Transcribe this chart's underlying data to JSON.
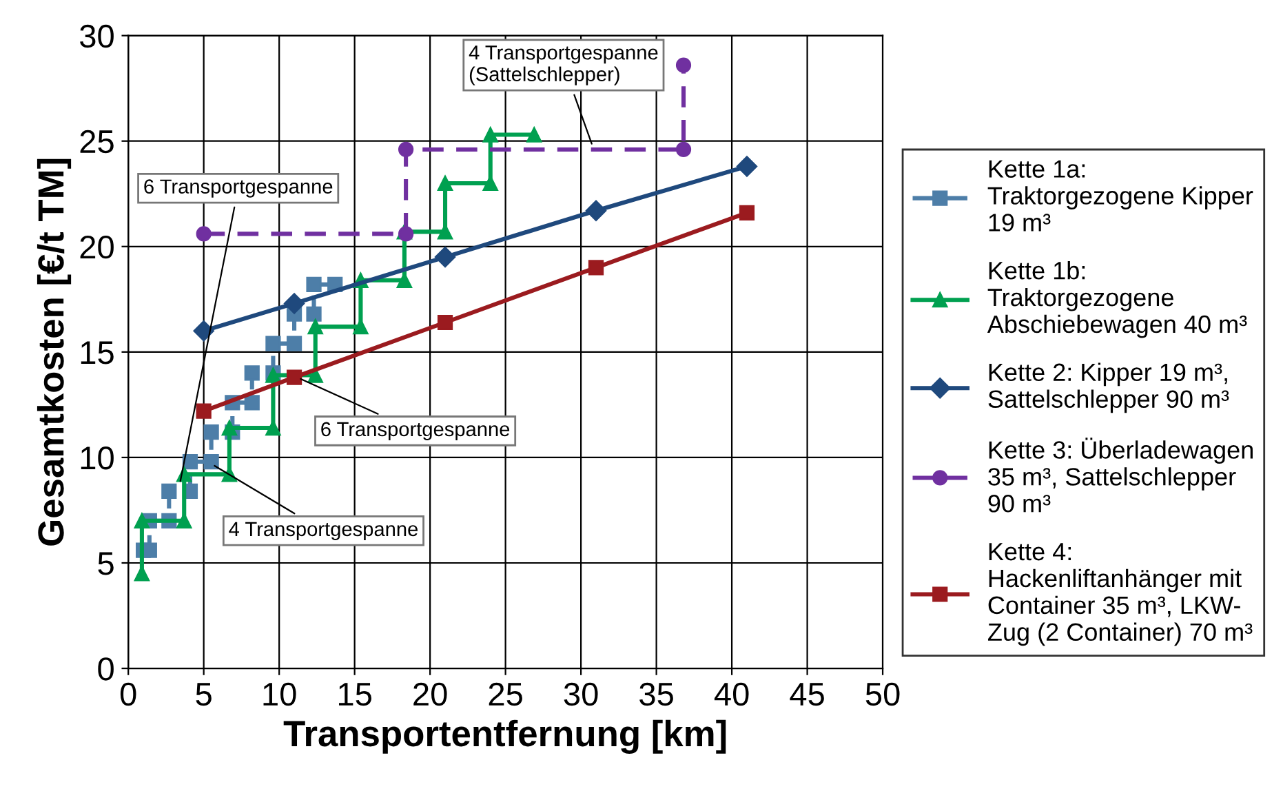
{
  "chart_data": {
    "type": "line",
    "xlabel": "Transportentfernung [km]",
    "ylabel": "Gesamtkosten [€/t TM]",
    "xlim": [
      0,
      50
    ],
    "ylim": [
      0,
      30
    ],
    "xticks": [
      0,
      5,
      10,
      15,
      20,
      25,
      30,
      35,
      40,
      45,
      50
    ],
    "yticks": [
      0,
      5,
      10,
      15,
      20,
      25,
      30
    ],
    "grid": true,
    "legend": "right",
    "series": [
      {
        "name": "Kette 1a:\nTraktorgezogene Kipper\n19 m³",
        "color": "#4d7ea8",
        "marker": "square",
        "line_style": "dashed",
        "x": [
          1.0,
          1.4,
          1.4,
          2.7,
          2.7,
          4.1,
          4.1,
          5.5,
          5.5,
          6.9,
          6.9,
          8.2,
          8.2,
          9.6,
          9.6,
          11.0,
          11.0,
          12.3,
          12.3,
          13.7
        ],
        "values": [
          5.6,
          5.6,
          7.0,
          7.0,
          8.4,
          8.4,
          9.8,
          9.8,
          11.2,
          11.2,
          12.6,
          12.6,
          14.0,
          14.0,
          15.4,
          15.4,
          16.8,
          16.8,
          18.2,
          18.2
        ]
      },
      {
        "name": "Kette 1b:\nTraktorgezogene\nAbschiebewagen 40 m³",
        "color": "#00a050",
        "marker": "triangle",
        "line_style": "solid",
        "x": [
          0.9,
          0.9,
          3.7,
          3.7,
          6.7,
          6.7,
          9.6,
          9.6,
          12.4,
          12.4,
          15.4,
          15.4,
          18.3,
          18.3,
          21.0,
          21.0,
          24.0,
          24.0,
          26.9
        ],
        "values": [
          4.5,
          7.0,
          7.0,
          9.2,
          9.2,
          11.4,
          11.4,
          13.9,
          13.9,
          16.2,
          16.2,
          18.4,
          18.4,
          20.7,
          20.7,
          23.0,
          23.0,
          25.3,
          25.3
        ]
      },
      {
        "name": "Kette 2: Kipper 19 m³,\nSattelschlepper 90 m³",
        "color": "#1f497d",
        "marker": "diamond",
        "line_style": "solid",
        "x": [
          5,
          11,
          21,
          31,
          41
        ],
        "values": [
          16.0,
          17.3,
          19.5,
          21.7,
          23.8
        ]
      },
      {
        "name": "Kette 3: Überladewagen\n35 m³, Sattelschlepper\n90 m³",
        "color": "#7030a0",
        "marker": "circle",
        "line_style": "dashed",
        "x": [
          5,
          18.4,
          18.4,
          36.8,
          36.8
        ],
        "values": [
          20.6,
          20.6,
          24.6,
          24.6,
          28.6
        ]
      },
      {
        "name": "Kette 4:\nHackenliftanhänger mit\nContainer 35 m³, LKW-\nZug (2 Container) 70 m³",
        "color": "#9b1b1f",
        "marker": "square",
        "line_style": "solid",
        "x": [
          5,
          11,
          21,
          31,
          41
        ],
        "values": [
          12.2,
          13.8,
          16.4,
          19.0,
          21.6
        ]
      }
    ],
    "annotations": [
      {
        "text": "4 Transportgespanne\n(Sattelschlepper)",
        "x": 30.8,
        "y": 24.7
      },
      {
        "text": "6 Transportgespanne",
        "x": 3.4,
        "y": 8.7
      },
      {
        "text": "6 Transportgespanne",
        "x": 11.2,
        "y": 13.8
      },
      {
        "text": "4 Transportgespanne",
        "x": 5.5,
        "y": 9.7
      }
    ]
  }
}
